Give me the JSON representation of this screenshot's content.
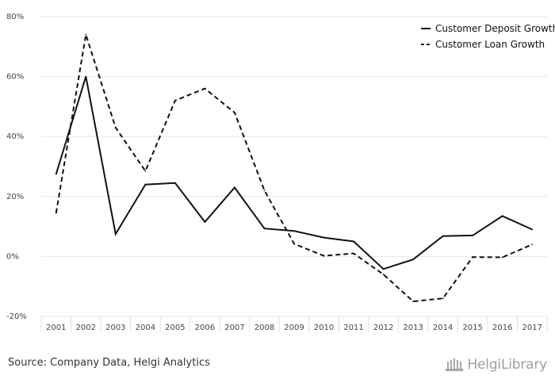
{
  "source_text": "Source: Company Data, Helgi Analytics",
  "logo_text": "HelgiLibrary",
  "chart_data": {
    "type": "line",
    "title": "",
    "xlabel": "",
    "ylabel": "",
    "x": [
      "2001",
      "2002",
      "2003",
      "2004",
      "2005",
      "2006",
      "2007",
      "2008",
      "2009",
      "2010",
      "2011",
      "2012",
      "2013",
      "2014",
      "2015",
      "2016",
      "2017"
    ],
    "ylim": [
      -20,
      80
    ],
    "yticks": [
      -20,
      0,
      20,
      40,
      60,
      80
    ],
    "ytick_labels": [
      "-20%",
      "0%",
      "20%",
      "40%",
      "60%",
      "80%"
    ],
    "grid": true,
    "legend_position": "top-right",
    "series": [
      {
        "name": "Customer Deposit Growth",
        "style": "solid",
        "color": "#111111",
        "values": [
          27.5,
          60,
          7.5,
          24,
          24.5,
          11.5,
          23,
          9.3,
          8.5,
          6.3,
          5,
          -4.2,
          -1,
          6.8,
          7,
          13.5,
          9
        ]
      },
      {
        "name": "Customer Loan Growth",
        "style": "dashed",
        "color": "#111111",
        "values": [
          14.5,
          74,
          43,
          28.5,
          52,
          56,
          48,
          22,
          4.2,
          0.2,
          1,
          -6,
          -15,
          -14,
          -0.2,
          -0.3,
          4
        ]
      }
    ]
  }
}
